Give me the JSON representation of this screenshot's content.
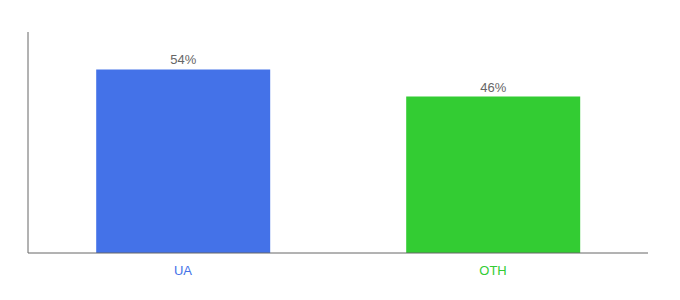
{
  "chart_data": {
    "type": "bar",
    "categories": [
      "UA",
      "OTH"
    ],
    "values": [
      54,
      46
    ],
    "value_labels": [
      "54%",
      "46%"
    ],
    "data_labels": true,
    "colors": [
      "#4472e8",
      "#33cc33"
    ],
    "ylim": [
      0,
      65
    ],
    "tick_labels": "x",
    "grid": false
  }
}
